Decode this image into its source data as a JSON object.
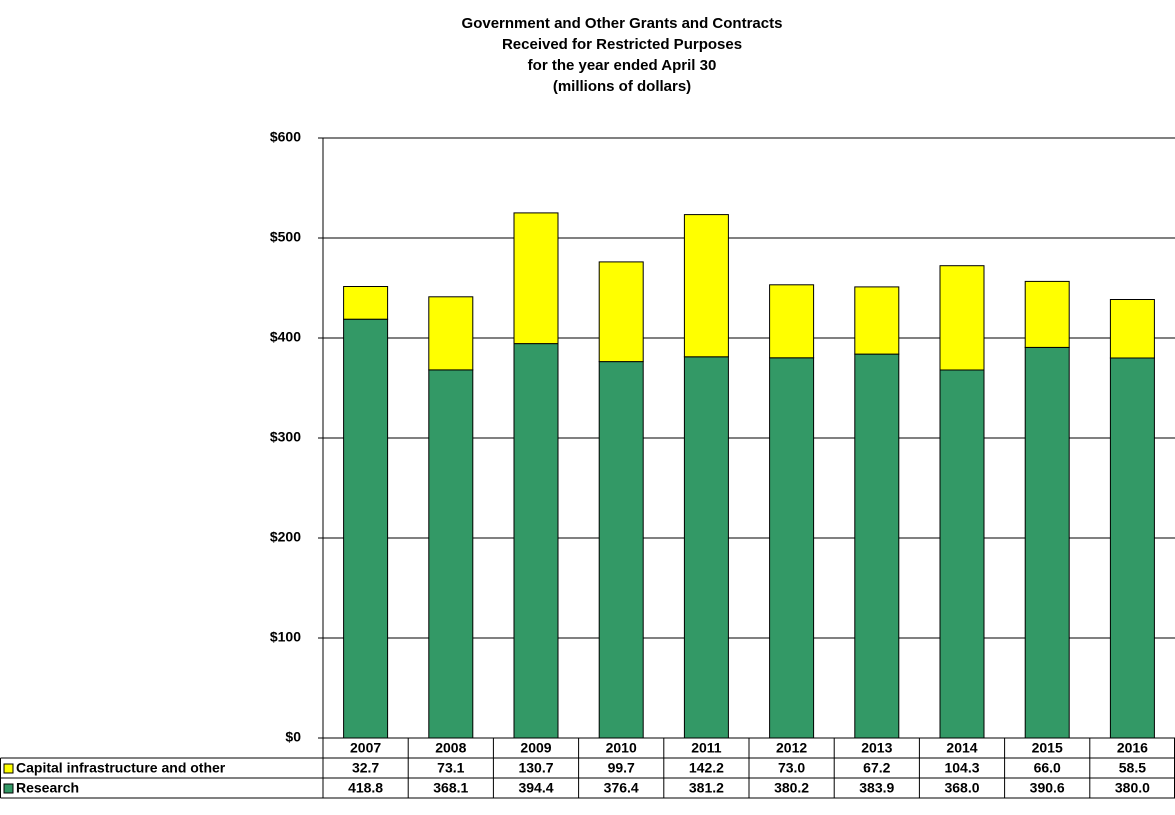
{
  "chart_data": {
    "type": "stacked-bar",
    "title": [
      "Government and Other Grants and Contracts",
      "Received for Restricted Purposes",
      "for the year ended April 30",
      "(millions of dollars)"
    ],
    "categories": [
      "2007",
      "2008",
      "2009",
      "2010",
      "2011",
      "2012",
      "2013",
      "2014",
      "2015",
      "2016"
    ],
    "series": [
      {
        "name": "Research",
        "color": "#339966",
        "values": [
          418.8,
          368.1,
          394.4,
          376.4,
          381.2,
          380.2,
          383.9,
          368.0,
          390.6,
          380.0
        ],
        "value_labels": [
          "418.8",
          "368.1",
          "394.4",
          "376.4",
          "381.2",
          "380.2",
          "383.9",
          "368.0",
          "390.6",
          "380.0"
        ]
      },
      {
        "name": "Capital infrastructure and other",
        "color": "#ffff00",
        "values": [
          32.7,
          73.1,
          130.7,
          99.7,
          142.2,
          73.0,
          67.2,
          104.3,
          66.0,
          58.5
        ],
        "value_labels": [
          "32.7",
          "73.1",
          "130.7",
          "99.7",
          "142.2",
          "73.0",
          "67.2",
          "104.3",
          "66.0",
          "58.5"
        ]
      }
    ],
    "ylim": [
      0,
      600
    ],
    "yticks": [
      {
        "value": 0,
        "label": "$0"
      },
      {
        "value": 100,
        "label": "$100"
      },
      {
        "value": 200,
        "label": "$200"
      },
      {
        "value": 300,
        "label": "$300"
      },
      {
        "value": 400,
        "label": "$400"
      },
      {
        "value": 500,
        "label": "$500"
      },
      {
        "value": 600,
        "label": "$600"
      }
    ],
    "grid": true
  }
}
